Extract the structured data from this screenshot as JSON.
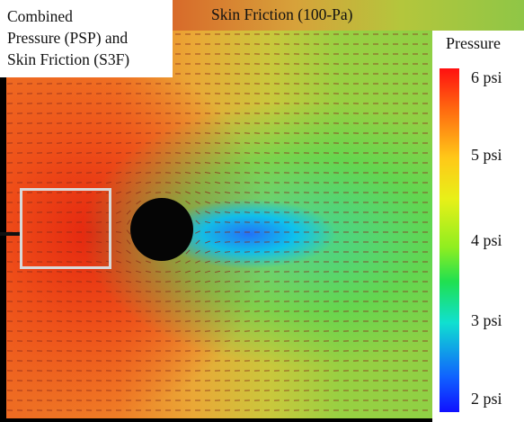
{
  "caption": {
    "lines": [
      "Combined",
      "Pressure (PSP) and",
      "Skin Friction (S3F)"
    ]
  },
  "title": "Skin Friction (100-Pa)",
  "legend": {
    "title": "Pressure",
    "ticks": [
      "6 psi",
      "5 psi",
      "4 psi",
      "3 psi",
      "2 psi"
    ]
  },
  "colors": {
    "high": "#ff1010",
    "mid": "#90ee20",
    "low": "#1010ff",
    "vector": "#8a2a1a"
  }
}
